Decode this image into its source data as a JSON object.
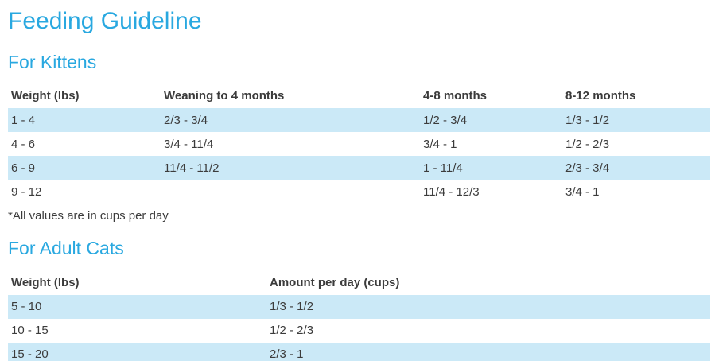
{
  "page": {
    "title": "Feeding Guideline",
    "colors": {
      "accent_blue": "#29a8e0",
      "row_highlight": "#cbe9f7",
      "text_dark": "#3c3c3c",
      "table_border": "#d8d8d8"
    }
  },
  "sections": [
    {
      "heading": "For Kittens",
      "table": {
        "headers": [
          "Weight (lbs)",
          "Weaning to 4 months",
          "4-8 months",
          "8-12 months"
        ],
        "rows": [
          [
            "1 - 4",
            "2/3 - 3/4",
            "1/2 - 3/4",
            "1/3 - 1/2"
          ],
          [
            "4 - 6",
            "3/4 - 11/4",
            "3/4 - 1",
            "1/2 - 2/3"
          ],
          [
            "6 - 9",
            "11/4 - 11/2",
            "1 - 11/4",
            "2/3 - 3/4"
          ],
          [
            "9 - 12",
            "",
            "11/4 - 12/3",
            "3/4 - 1"
          ]
        ]
      },
      "footnote": "*All values are in cups per day"
    },
    {
      "heading": "For Adult Cats",
      "table": {
        "headers": [
          "Weight (lbs)",
          "Amount per day (cups)"
        ],
        "rows": [
          [
            "5 - 10",
            "1/3 - 1/2"
          ],
          [
            "10 - 15",
            "1/2 - 2/3"
          ],
          [
            "15 - 20",
            "2/3 - 1"
          ]
        ]
      }
    }
  ]
}
